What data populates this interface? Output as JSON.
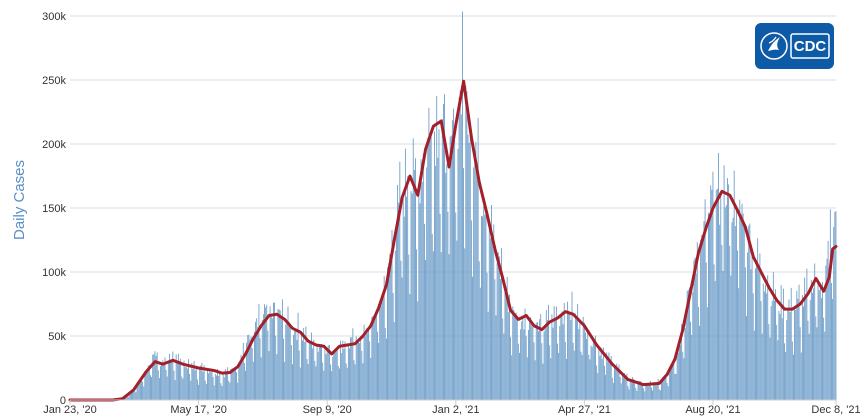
{
  "chart_data": {
    "type": "bar",
    "title": "",
    "xlabel": "",
    "ylabel": "Daily Cases",
    "ylim": [
      0,
      300000
    ],
    "yticks": [
      0,
      50000,
      100000,
      150000,
      200000,
      250000,
      300000
    ],
    "ytick_labels": [
      "0",
      "50k",
      "100k",
      "150k",
      "200k",
      "250k",
      "300k"
    ],
    "xlim": [
      "2020-01-23",
      "2021-12-08"
    ],
    "xticks": [
      "2020-01-23",
      "2020-05-17",
      "2020-09-09",
      "2021-01-02",
      "2021-04-27",
      "2021-08-20",
      "2021-12-08"
    ],
    "xtick_labels": [
      "Jan 23, '20",
      "May 17, '20",
      "Sep 9, '20",
      "Jan 2, '21",
      "Apr 27, '21",
      "Aug 20, '21",
      "Dec 8, '21"
    ],
    "grid": true,
    "series": [
      {
        "kind": "bar",
        "color": "#6f9ec9",
        "points": [
          [
            "2020-01-23",
            0
          ],
          [
            "2020-03-01",
            0
          ],
          [
            "2020-03-10",
            1000
          ],
          [
            "2020-03-20",
            8000
          ],
          [
            "2020-03-31",
            22000
          ],
          [
            "2020-04-06",
            32000
          ],
          [
            "2020-04-15",
            30000
          ],
          [
            "2020-04-24",
            33000
          ],
          [
            "2020-05-03",
            28000
          ],
          [
            "2020-05-17",
            25000
          ],
          [
            "2020-05-31",
            23000
          ],
          [
            "2020-06-07",
            20000
          ],
          [
            "2020-06-14",
            22000
          ],
          [
            "2020-06-21",
            28000
          ],
          [
            "2020-06-28",
            43000
          ],
          [
            "2020-07-05",
            52000
          ],
          [
            "2020-07-12",
            62000
          ],
          [
            "2020-07-19",
            67000
          ],
          [
            "2020-07-26",
            67000
          ],
          [
            "2020-08-02",
            62000
          ],
          [
            "2020-08-09",
            56000
          ],
          [
            "2020-08-16",
            53000
          ],
          [
            "2020-08-23",
            46000
          ],
          [
            "2020-08-30",
            43000
          ],
          [
            "2020-09-09",
            41000
          ],
          [
            "2020-09-13",
            37000
          ],
          [
            "2020-09-20",
            42000
          ],
          [
            "2020-09-27",
            43000
          ],
          [
            "2020-10-04",
            45000
          ],
          [
            "2020-10-11",
            51000
          ],
          [
            "2020-10-18",
            58000
          ],
          [
            "2020-10-25",
            72000
          ],
          [
            "2020-11-01",
            90000
          ],
          [
            "2020-11-08",
            125000
          ],
          [
            "2020-11-15",
            158000
          ],
          [
            "2020-11-22",
            172000
          ],
          [
            "2020-11-29",
            160000
          ],
          [
            "2020-12-06",
            195000
          ],
          [
            "2020-12-13",
            212000
          ],
          [
            "2020-12-20",
            214000
          ],
          [
            "2020-12-27",
            182000
          ],
          [
            "2021-01-02",
            215000
          ],
          [
            "2021-01-09",
            245000
          ],
          [
            "2021-01-16",
            205000
          ],
          [
            "2021-01-23",
            170000
          ],
          [
            "2021-01-30",
            145000
          ],
          [
            "2021-02-06",
            118000
          ],
          [
            "2021-02-13",
            95000
          ],
          [
            "2021-02-20",
            70000
          ],
          [
            "2021-02-27",
            62000
          ],
          [
            "2021-03-06",
            65000
          ],
          [
            "2021-03-13",
            58000
          ],
          [
            "2021-03-20",
            55000
          ],
          [
            "2021-03-27",
            61000
          ],
          [
            "2021-04-03",
            64000
          ],
          [
            "2021-04-10",
            68000
          ],
          [
            "2021-04-17",
            67000
          ],
          [
            "2021-04-27",
            58000
          ],
          [
            "2021-05-08",
            42000
          ],
          [
            "2021-05-22",
            28000
          ],
          [
            "2021-06-05",
            16000
          ],
          [
            "2021-06-19",
            12000
          ],
          [
            "2021-07-03",
            13000
          ],
          [
            "2021-07-10",
            20000
          ],
          [
            "2021-07-17",
            32000
          ],
          [
            "2021-07-24",
            55000
          ],
          [
            "2021-07-31",
            85000
          ],
          [
            "2021-08-07",
            115000
          ],
          [
            "2021-08-14",
            135000
          ],
          [
            "2021-08-20",
            150000
          ],
          [
            "2021-08-28",
            162000
          ],
          [
            "2021-09-04",
            160000
          ],
          [
            "2021-09-11",
            148000
          ],
          [
            "2021-09-18",
            135000
          ],
          [
            "2021-09-25",
            112000
          ],
          [
            "2021-10-02",
            100000
          ],
          [
            "2021-10-09",
            88000
          ],
          [
            "2021-10-16",
            78000
          ],
          [
            "2021-10-23",
            70000
          ],
          [
            "2021-10-30",
            70000
          ],
          [
            "2021-11-06",
            75000
          ],
          [
            "2021-11-13",
            82000
          ],
          [
            "2021-11-20",
            95000
          ],
          [
            "2021-11-27",
            86000
          ],
          [
            "2021-12-08",
            150000
          ]
        ]
      },
      {
        "kind": "line",
        "color": "#a3202a",
        "points": [
          [
            "2020-01-23",
            0
          ],
          [
            "2020-03-01",
            0
          ],
          [
            "2020-03-10",
            1000
          ],
          [
            "2020-03-20",
            8000
          ],
          [
            "2020-03-31",
            22000
          ],
          [
            "2020-04-08",
            30000
          ],
          [
            "2020-04-15",
            28000
          ],
          [
            "2020-04-24",
            31000
          ],
          [
            "2020-05-03",
            28000
          ],
          [
            "2020-05-17",
            25000
          ],
          [
            "2020-05-31",
            23000
          ],
          [
            "2020-06-07",
            21000
          ],
          [
            "2020-06-14",
            21500
          ],
          [
            "2020-06-21",
            26000
          ],
          [
            "2020-06-28",
            36000
          ],
          [
            "2020-07-05",
            48000
          ],
          [
            "2020-07-12",
            58000
          ],
          [
            "2020-07-19",
            66000
          ],
          [
            "2020-07-26",
            67000
          ],
          [
            "2020-08-02",
            63000
          ],
          [
            "2020-08-09",
            56000
          ],
          [
            "2020-08-16",
            53000
          ],
          [
            "2020-08-23",
            46000
          ],
          [
            "2020-08-30",
            43000
          ],
          [
            "2020-09-06",
            42000
          ],
          [
            "2020-09-13",
            36000
          ],
          [
            "2020-09-20",
            42000
          ],
          [
            "2020-09-27",
            43000
          ],
          [
            "2020-10-04",
            44000
          ],
          [
            "2020-10-11",
            50000
          ],
          [
            "2020-10-18",
            58000
          ],
          [
            "2020-10-25",
            72000
          ],
          [
            "2020-11-01",
            90000
          ],
          [
            "2020-11-08",
            125000
          ],
          [
            "2020-11-15",
            158000
          ],
          [
            "2020-11-22",
            175000
          ],
          [
            "2020-11-29",
            160000
          ],
          [
            "2020-12-06",
            196000
          ],
          [
            "2020-12-13",
            214000
          ],
          [
            "2020-12-20",
            218000
          ],
          [
            "2020-12-27",
            182000
          ],
          [
            "2021-01-02",
            215000
          ],
          [
            "2021-01-09",
            249000
          ],
          [
            "2021-01-16",
            205000
          ],
          [
            "2021-01-23",
            170000
          ],
          [
            "2021-01-30",
            145000
          ],
          [
            "2021-02-06",
            118000
          ],
          [
            "2021-02-13",
            95000
          ],
          [
            "2021-02-20",
            70000
          ],
          [
            "2021-02-27",
            63000
          ],
          [
            "2021-03-06",
            66000
          ],
          [
            "2021-03-13",
            58000
          ],
          [
            "2021-03-20",
            55000
          ],
          [
            "2021-03-27",
            61000
          ],
          [
            "2021-04-03",
            64000
          ],
          [
            "2021-04-10",
            69000
          ],
          [
            "2021-04-17",
            67000
          ],
          [
            "2021-04-27",
            58000
          ],
          [
            "2021-05-08",
            43000
          ],
          [
            "2021-05-22",
            28000
          ],
          [
            "2021-06-05",
            16000
          ],
          [
            "2021-06-19",
            12000
          ],
          [
            "2021-07-03",
            13000
          ],
          [
            "2021-07-10",
            20000
          ],
          [
            "2021-07-17",
            32000
          ],
          [
            "2021-07-24",
            55000
          ],
          [
            "2021-07-31",
            85000
          ],
          [
            "2021-08-07",
            115000
          ],
          [
            "2021-08-14",
            135000
          ],
          [
            "2021-08-20",
            150000
          ],
          [
            "2021-08-28",
            163000
          ],
          [
            "2021-09-04",
            160000
          ],
          [
            "2021-09-11",
            148000
          ],
          [
            "2021-09-18",
            135000
          ],
          [
            "2021-09-25",
            112000
          ],
          [
            "2021-10-02",
            100000
          ],
          [
            "2021-10-09",
            88000
          ],
          [
            "2021-10-16",
            78000
          ],
          [
            "2021-10-23",
            71000
          ],
          [
            "2021-10-30",
            71000
          ],
          [
            "2021-11-06",
            75000
          ],
          [
            "2021-11-13",
            83000
          ],
          [
            "2021-11-20",
            95000
          ],
          [
            "2021-11-27",
            85000
          ],
          [
            "2021-12-02",
            96000
          ],
          [
            "2021-12-05",
            118000
          ],
          [
            "2021-12-08",
            120000
          ]
        ]
      }
    ]
  },
  "logo": {
    "text": "CDC",
    "bg_color": "#0d5aa7"
  }
}
